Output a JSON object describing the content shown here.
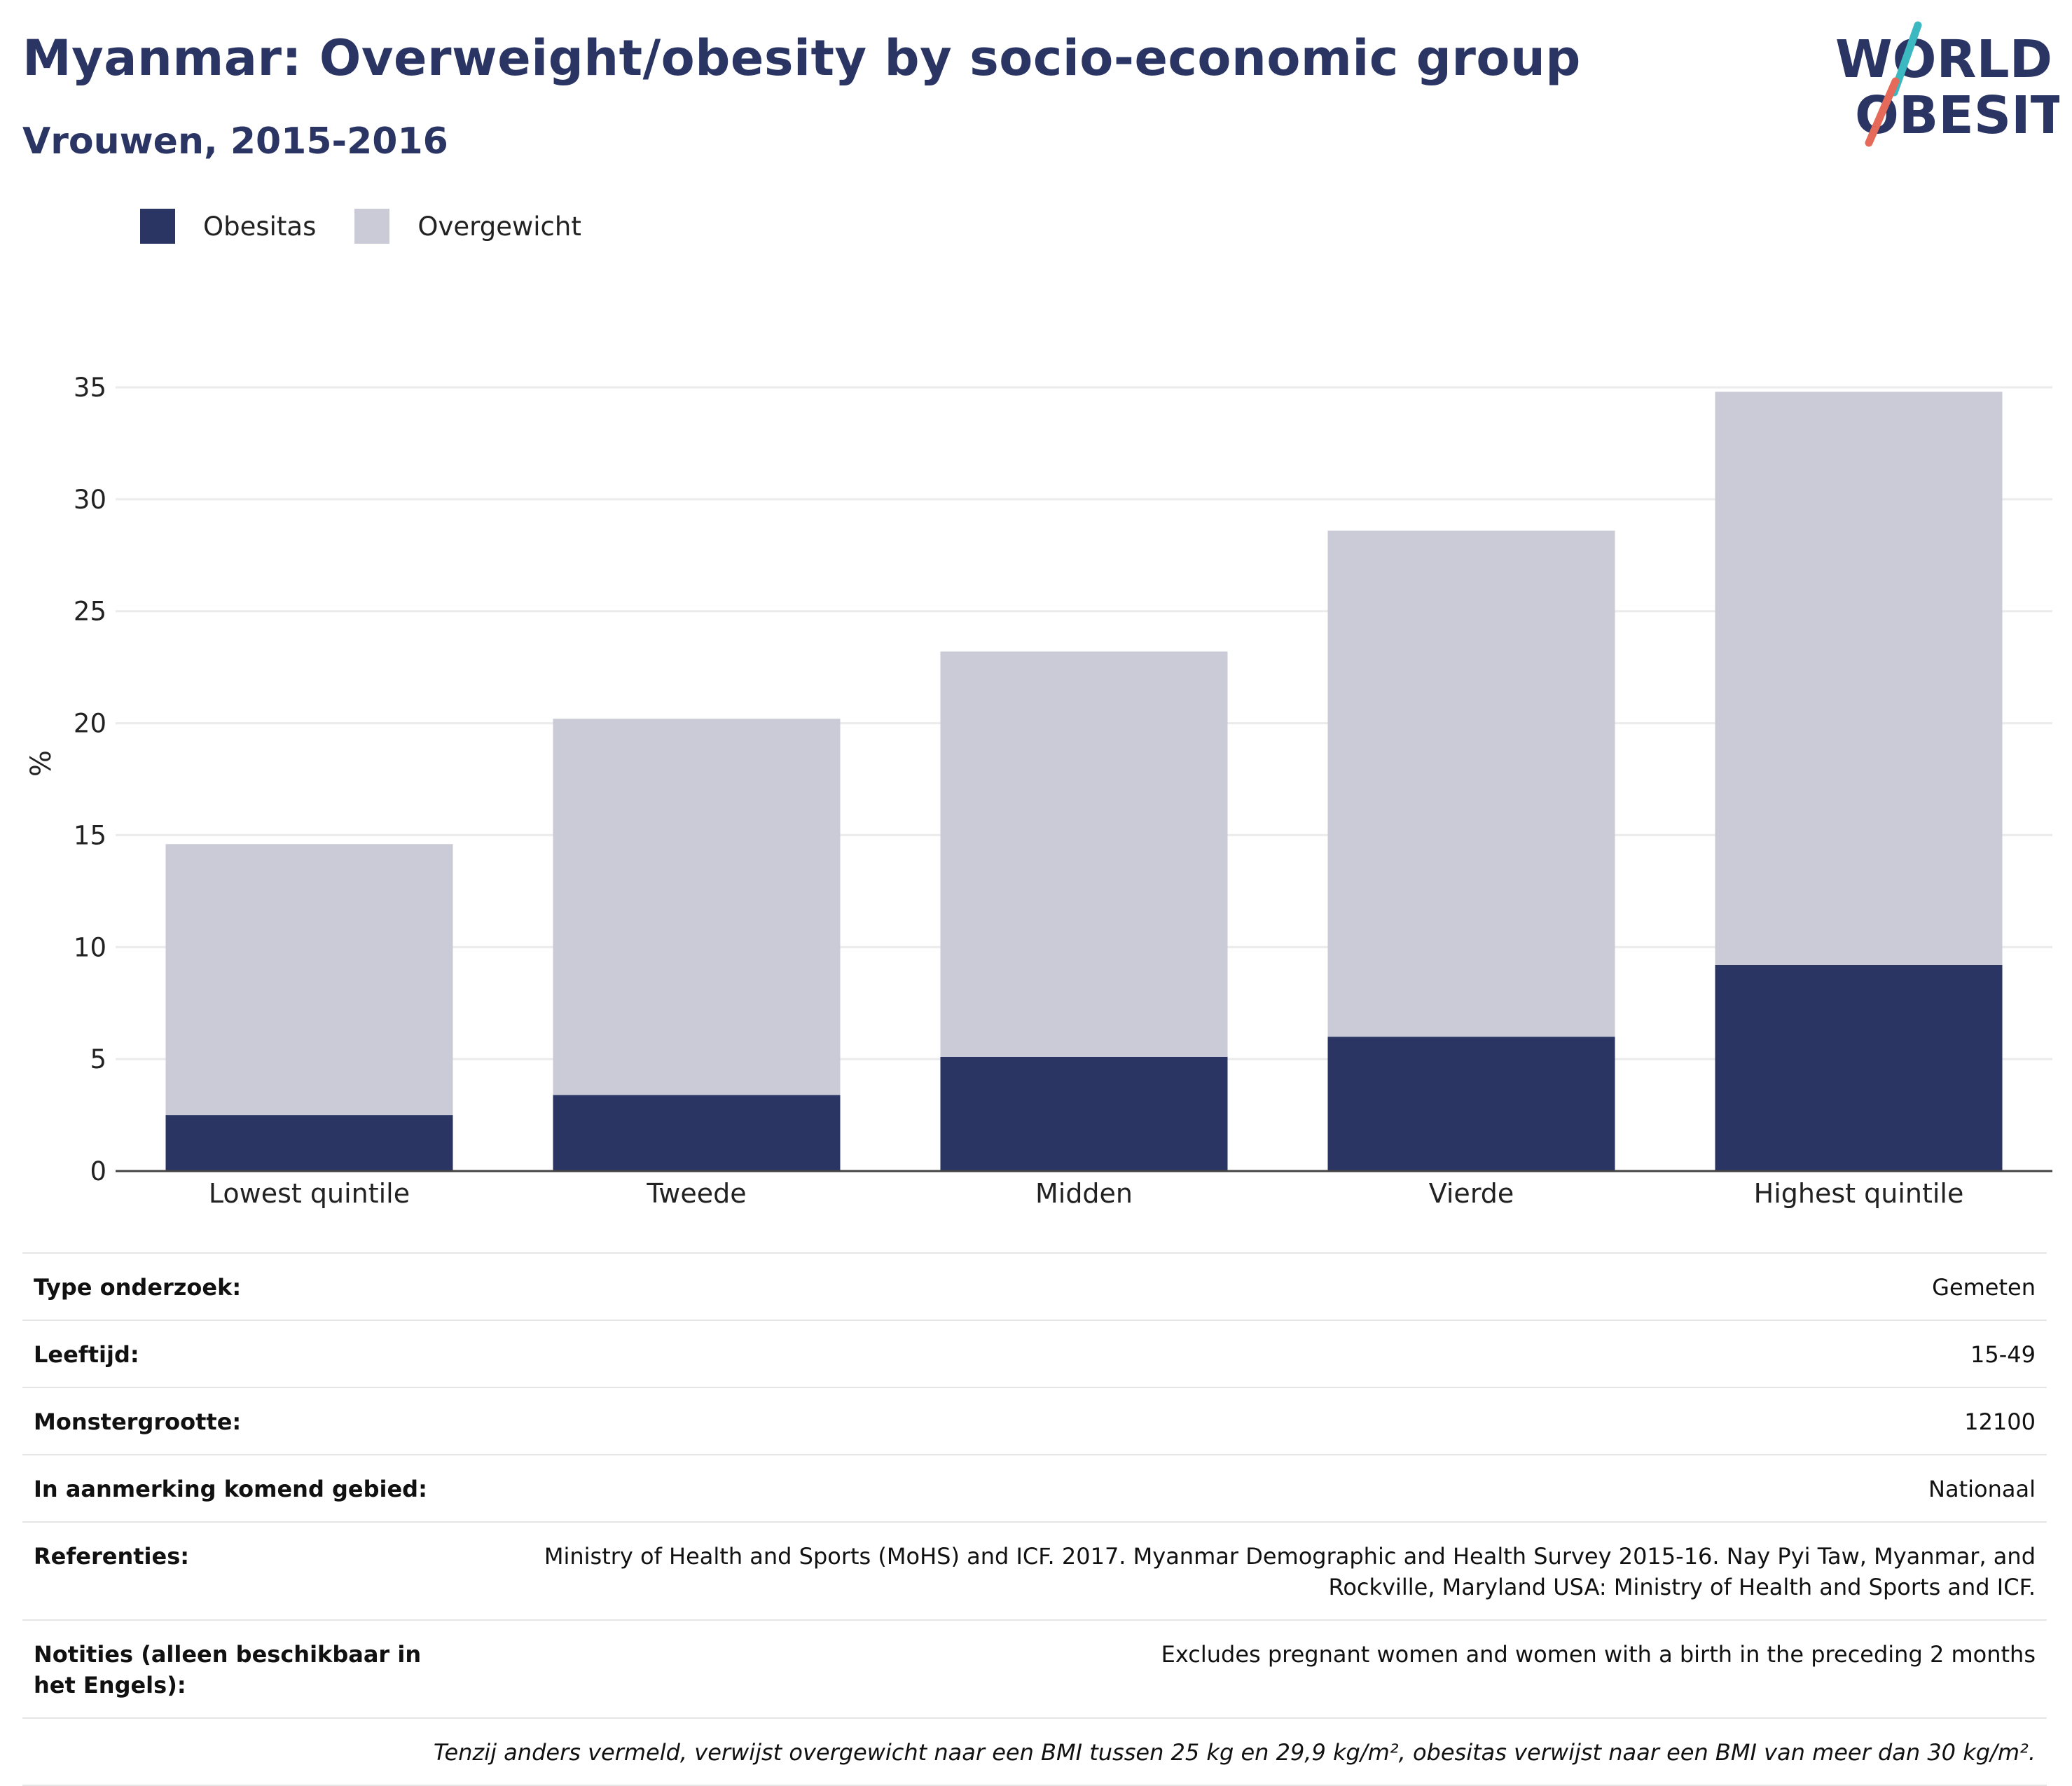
{
  "header": {
    "title": "Myanmar: Overweight/obesity by socio-economic group",
    "subtitle": "Vrouwen, 2015-2016"
  },
  "logo": {
    "line1": "WORLD",
    "line2": "OBESITY"
  },
  "colors": {
    "obesity": "#2a3564",
    "overweight": "#cacbd7",
    "grid": "#ebebeb",
    "axis": "#444444",
    "logo_teal": "#3bb8c0",
    "logo_red": "#e56a5a"
  },
  "chart_data": {
    "type": "bar",
    "stacked": true,
    "categories": [
      "Lowest quintile",
      "Tweede",
      "Midden",
      "Vierde",
      "Highest quintile"
    ],
    "series": [
      {
        "name": "Obesitas",
        "values": [
          2.5,
          3.4,
          5.1,
          6.0,
          9.2
        ]
      },
      {
        "name": "Overgewicht",
        "values": [
          12.1,
          16.8,
          18.1,
          22.6,
          25.6
        ]
      }
    ],
    "ylabel": "%",
    "ylim": [
      0,
      35
    ],
    "yticks": [
      0,
      5,
      10,
      15,
      20,
      25,
      30,
      35
    ],
    "legend_position": "top-left",
    "grid": true
  },
  "info": {
    "rows": [
      {
        "label": "Type onderzoek:",
        "value": "Gemeten"
      },
      {
        "label": "Leeftijd:",
        "value": "15-49"
      },
      {
        "label": "Monstergrootte:",
        "value": "12100"
      },
      {
        "label": "In aanmerking komend gebied:",
        "value": "Nationaal"
      },
      {
        "label": "Referenties:",
        "value": "Ministry of Health and Sports (MoHS) and ICF. 2017. Myanmar Demographic and Health Survey 2015-16. Nay Pyi Taw, Myanmar, and Rockville, Maryland USA: Ministry of Health and Sports and ICF."
      },
      {
        "label": "Notities (alleen beschikbaar in het Engels):",
        "value": "Excludes pregnant women and women with a birth in the preceding 2 months"
      }
    ],
    "footnote": "Tenzij anders vermeld, verwijst overgewicht naar een BMI tussen 25 kg en 29,9 kg/m², obesitas verwijst naar een BMI van meer dan 30 kg/m²."
  }
}
